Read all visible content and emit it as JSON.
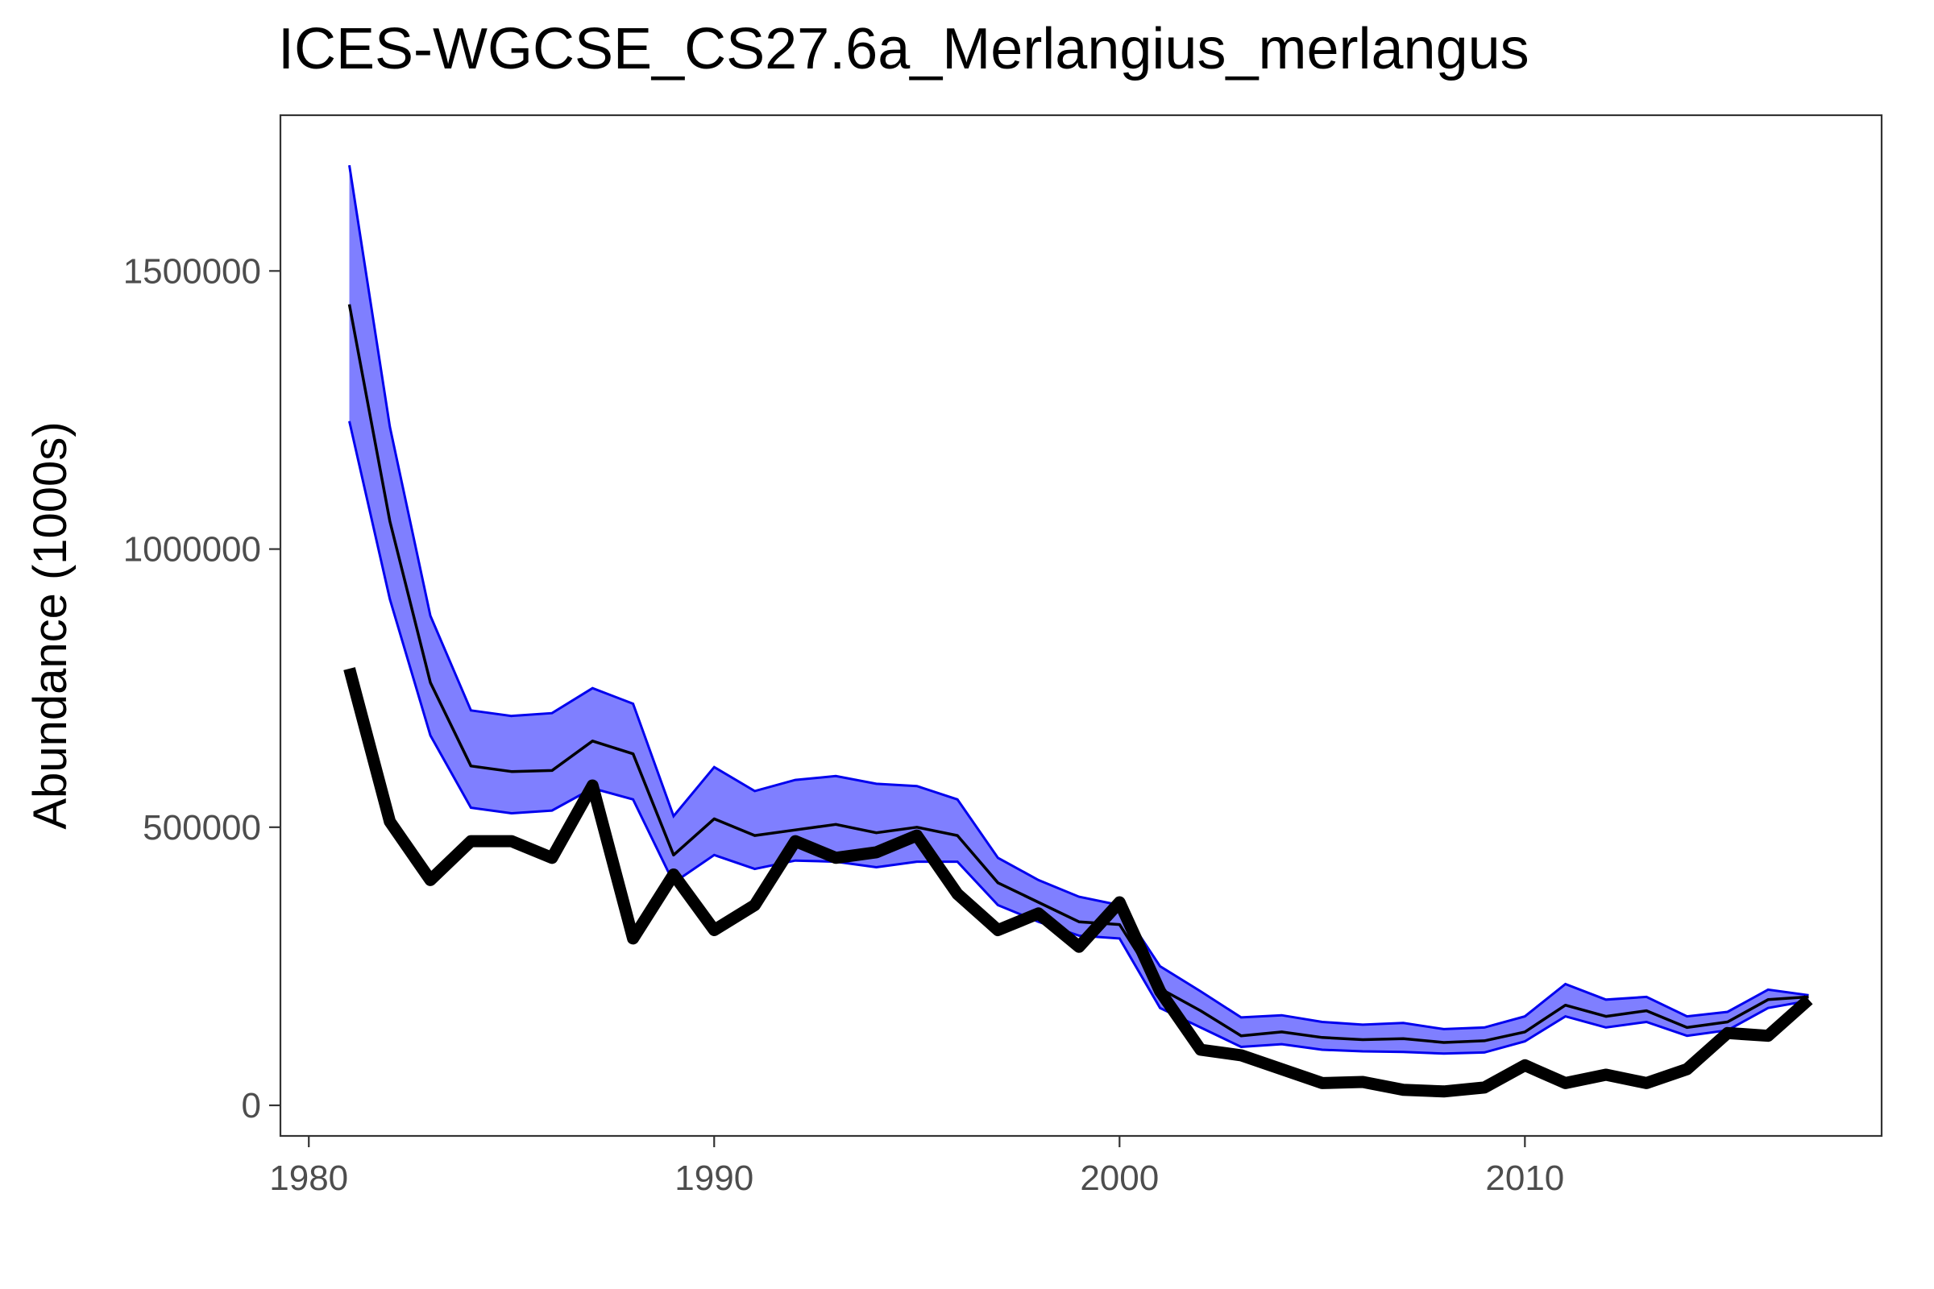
{
  "chart_data": {
    "type": "line",
    "title": "ICES-WGCSE_CS27.6a_Merlangius_merlangus",
    "xlabel": "",
    "ylabel": "Abundance (1000s)",
    "xlim": [
      1979.3,
      2018.8
    ],
    "ylim": [
      -55000,
      1780000
    ],
    "x_ticks": [
      1980,
      1990,
      2000,
      2010
    ],
    "y_ticks": [
      0,
      500000,
      1000000,
      1500000
    ],
    "grid": false,
    "legend": "none",
    "colors": {
      "band_fill": "#7f7fff",
      "band_edge": "#0000ee",
      "median_line": "#000000",
      "observed_line": "#000000"
    },
    "x": [
      1981,
      1982,
      1983,
      1984,
      1985,
      1986,
      1987,
      1988,
      1989,
      1990,
      1991,
      1992,
      1993,
      1994,
      1995,
      1996,
      1997,
      1998,
      1999,
      2000,
      2001,
      2002,
      2003,
      2004,
      2005,
      2006,
      2007,
      2008,
      2009,
      2010,
      2011,
      2012,
      2013,
      2014,
      2015,
      2016,
      2017
    ],
    "series": [
      {
        "values": [
          1440000,
          1050000,
          760000,
          610000,
          600000,
          602000,
          655000,
          632000,
          450000,
          515000,
          485000,
          495000,
          505000,
          490000,
          500000,
          485000,
          400000,
          365000,
          330000,
          325000,
          210000,
          170000,
          125000,
          132000,
          122000,
          118000,
          120000,
          113000,
          116000,
          132000,
          180000,
          160000,
          170000,
          140000,
          150000,
          190000,
          195000
        ]
      },
      {
        "values": [
          1230000,
          910000,
          665000,
          535000,
          525000,
          530000,
          570000,
          550000,
          400000,
          450000,
          425000,
          440000,
          438000,
          428000,
          438000,
          438000,
          360000,
          330000,
          305000,
          300000,
          175000,
          140000,
          105000,
          110000,
          100000,
          97000,
          96000,
          93000,
          95000,
          115000,
          160000,
          140000,
          150000,
          125000,
          135000,
          175000,
          188000
        ]
      },
      {
        "values": [
          1690000,
          1220000,
          880000,
          710000,
          700000,
          705000,
          750000,
          722000,
          520000,
          608000,
          565000,
          585000,
          592000,
          578000,
          574000,
          550000,
          445000,
          405000,
          375000,
          360000,
          250000,
          205000,
          158000,
          162000,
          150000,
          145000,
          148000,
          137000,
          140000,
          160000,
          218000,
          190000,
          195000,
          160000,
          168000,
          208000,
          198000
        ]
      },
      {
        "values": [
          785000,
          510000,
          405000,
          475000,
          475000,
          445000,
          575000,
          300000,
          415000,
          315000,
          360000,
          475000,
          445000,
          455000,
          485000,
          380000,
          315000,
          345000,
          285000,
          365000,
          205000,
          100000,
          90000,
          65000,
          40000,
          42000,
          28000,
          25000,
          32000,
          72000,
          40000,
          55000,
          40000,
          65000,
          130000,
          125000,
          190000
        ]
      }
    ]
  }
}
